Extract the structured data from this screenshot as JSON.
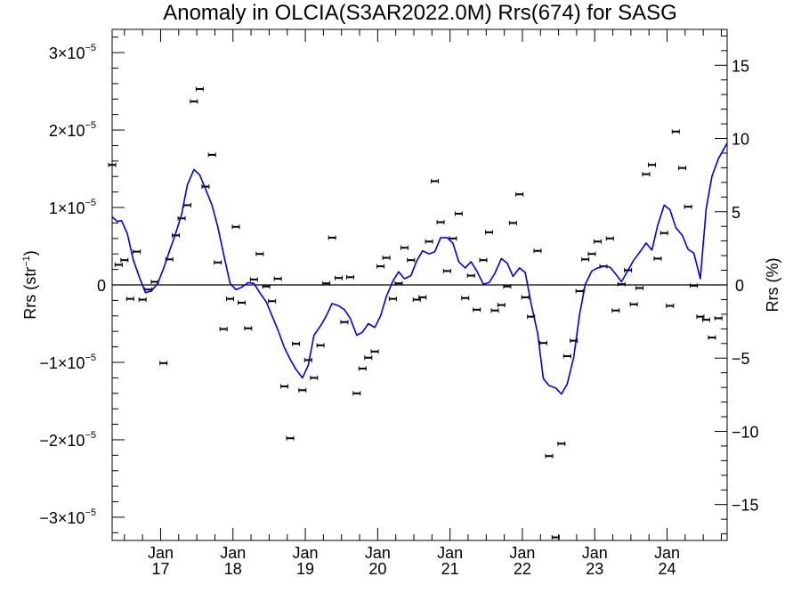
{
  "chart_data": {
    "type": "scatter",
    "title": "Anomaly in OLCIA(S3AR2022.0M) Rrs(674) for SASG",
    "ylabel": "Rrs (str",
    "ylabel_sup": "−1",
    "ylabel_close": ")",
    "y2label": "Rrs (%)",
    "x_range": [
      2016.33,
      2024.83
    ],
    "y_range": [
      -3.3e-05,
      3.3e-05
    ],
    "y2_range": [
      -17.45,
      17.45
    ],
    "x_ticks": [
      {
        "x": 2017.0,
        "top": "Jan",
        "bottom": "17"
      },
      {
        "x": 2018.0,
        "top": "Jan",
        "bottom": "18"
      },
      {
        "x": 2019.0,
        "top": "Jan",
        "bottom": "19"
      },
      {
        "x": 2020.0,
        "top": "Jan",
        "bottom": "20"
      },
      {
        "x": 2021.0,
        "top": "Jan",
        "bottom": "21"
      },
      {
        "x": 2022.0,
        "top": "Jan",
        "bottom": "22"
      },
      {
        "x": 2023.0,
        "top": "Jan",
        "bottom": "23"
      },
      {
        "x": 2024.0,
        "top": "Jan",
        "bottom": "24"
      }
    ],
    "y_ticks": [
      {
        "v": 3e-05,
        "mant": "3×10",
        "exp": "−5"
      },
      {
        "v": 2e-05,
        "mant": "2×10",
        "exp": "−5"
      },
      {
        "v": 1e-05,
        "mant": "1×10",
        "exp": "−5"
      },
      {
        "v": 0,
        "mant": "0",
        "exp": ""
      },
      {
        "v": -1e-05,
        "mant": "−1×10",
        "exp": "−5"
      },
      {
        "v": -2e-05,
        "mant": "−2×10",
        "exp": "−5"
      },
      {
        "v": -3e-05,
        "mant": "−3×10",
        "exp": "−5"
      }
    ],
    "y2_ticks": [
      {
        "v": 15,
        "label": "15"
      },
      {
        "v": 10,
        "label": "10"
      },
      {
        "v": 5,
        "label": "5"
      },
      {
        "v": 0,
        "label": "0"
      },
      {
        "v": -5,
        "label": "−5"
      },
      {
        "v": -10,
        "label": "−10"
      },
      {
        "v": -15,
        "label": "−15"
      }
    ],
    "zero_line": true,
    "points": [
      {
        "x": 2016.33,
        "y": 1.55e-05
      },
      {
        "x": 2016.42,
        "y": 2.6e-06
      },
      {
        "x": 2016.5,
        "y": 3.2e-06
      },
      {
        "x": 2016.58,
        "y": -1.8e-06
      },
      {
        "x": 2016.67,
        "y": 4.3e-06
      },
      {
        "x": 2016.75,
        "y": -1.9e-06
      },
      {
        "x": 2016.83,
        "y": -6e-07
      },
      {
        "x": 2016.92,
        "y": 4e-07
      },
      {
        "x": 2017.04,
        "y": -1.01e-05
      },
      {
        "x": 2017.12,
        "y": 3.3e-06
      },
      {
        "x": 2017.21,
        "y": 6.4e-06
      },
      {
        "x": 2017.29,
        "y": 8.6e-06
      },
      {
        "x": 2017.37,
        "y": 1.03e-05
      },
      {
        "x": 2017.46,
        "y": 2.37e-05
      },
      {
        "x": 2017.54,
        "y": 2.53e-05
      },
      {
        "x": 2017.62,
        "y": 1.27e-05
      },
      {
        "x": 2017.71,
        "y": 1.68e-05
      },
      {
        "x": 2017.79,
        "y": 2.9e-06
      },
      {
        "x": 2017.87,
        "y": -5.7e-06
      },
      {
        "x": 2017.96,
        "y": -1.8e-06
      },
      {
        "x": 2018.04,
        "y": 7.5e-06
      },
      {
        "x": 2018.12,
        "y": -2.3e-06
      },
      {
        "x": 2018.21,
        "y": -5.6e-06
      },
      {
        "x": 2018.29,
        "y": 7e-07
      },
      {
        "x": 2018.37,
        "y": 4e-06
      },
      {
        "x": 2018.46,
        "y": -2e-07
      },
      {
        "x": 2018.54,
        "y": -2.1e-06
      },
      {
        "x": 2018.62,
        "y": 8e-07
      },
      {
        "x": 2018.71,
        "y": -1.31e-05
      },
      {
        "x": 2018.79,
        "y": -1.98e-05
      },
      {
        "x": 2018.87,
        "y": -7.6e-06
      },
      {
        "x": 2018.96,
        "y": -1.36e-05
      },
      {
        "x": 2019.04,
        "y": -9.7e-06
      },
      {
        "x": 2019.12,
        "y": -1.2e-05
      },
      {
        "x": 2019.21,
        "y": -7.8e-06
      },
      {
        "x": 2019.29,
        "y": 2e-07
      },
      {
        "x": 2019.37,
        "y": 6.1e-06
      },
      {
        "x": 2019.46,
        "y": 9e-07
      },
      {
        "x": 2019.54,
        "y": -4.8e-06
      },
      {
        "x": 2019.62,
        "y": 1e-06
      },
      {
        "x": 2019.71,
        "y": -1.4e-05
      },
      {
        "x": 2019.79,
        "y": -1.08e-05
      },
      {
        "x": 2019.87,
        "y": -9.4e-06
      },
      {
        "x": 2019.96,
        "y": -8.6e-06
      },
      {
        "x": 2020.04,
        "y": 2.4e-06
      },
      {
        "x": 2020.12,
        "y": 3.5e-06
      },
      {
        "x": 2020.21,
        "y": -1.8e-06
      },
      {
        "x": 2020.29,
        "y": 2e-07
      },
      {
        "x": 2020.37,
        "y": 4.8e-06
      },
      {
        "x": 2020.46,
        "y": 3.2e-06
      },
      {
        "x": 2020.54,
        "y": -1.9e-06
      },
      {
        "x": 2020.62,
        "y": -1.6e-06
      },
      {
        "x": 2020.71,
        "y": 5.6e-06
      },
      {
        "x": 2020.79,
        "y": 1.34e-05
      },
      {
        "x": 2020.87,
        "y": 8.1e-06
      },
      {
        "x": 2020.96,
        "y": 1.8e-06
      },
      {
        "x": 2021.04,
        "y": 6e-06
      },
      {
        "x": 2021.12,
        "y": 9.2e-06
      },
      {
        "x": 2021.21,
        "y": -1.7e-06
      },
      {
        "x": 2021.29,
        "y": 1.2e-06
      },
      {
        "x": 2021.37,
        "y": -3.2e-06
      },
      {
        "x": 2021.46,
        "y": 3.2e-06
      },
      {
        "x": 2021.54,
        "y": 6.8e-06
      },
      {
        "x": 2021.62,
        "y": -3.3e-06
      },
      {
        "x": 2021.71,
        "y": -2.6e-06
      },
      {
        "x": 2021.79,
        "y": -2e-07
      },
      {
        "x": 2021.87,
        "y": 8e-06
      },
      {
        "x": 2021.96,
        "y": 1.17e-05
      },
      {
        "x": 2022.04,
        "y": -1.6e-06
      },
      {
        "x": 2022.12,
        "y": -4.1e-06
      },
      {
        "x": 2022.21,
        "y": 4.4e-06
      },
      {
        "x": 2022.29,
        "y": -7.5e-06
      },
      {
        "x": 2022.37,
        "y": -2.21e-05
      },
      {
        "x": 2022.46,
        "y": -3.26e-05
      },
      {
        "x": 2022.54,
        "y": -2.05e-05
      },
      {
        "x": 2022.62,
        "y": -9.2e-06
      },
      {
        "x": 2022.71,
        "y": -7.2e-06
      },
      {
        "x": 2022.79,
        "y": -8e-07
      },
      {
        "x": 2022.87,
        "y": 3.3e-06
      },
      {
        "x": 2022.96,
        "y": 4e-06
      },
      {
        "x": 2023.04,
        "y": 5.6e-06
      },
      {
        "x": 2023.12,
        "y": 2.4e-06
      },
      {
        "x": 2023.21,
        "y": 6e-06
      },
      {
        "x": 2023.29,
        "y": -3.3e-06
      },
      {
        "x": 2023.37,
        "y": 1e-07
      },
      {
        "x": 2023.46,
        "y": 1.9e-06
      },
      {
        "x": 2023.54,
        "y": -2.5e-06
      },
      {
        "x": 2023.62,
        "y": -4e-07
      },
      {
        "x": 2023.71,
        "y": 1.43e-05
      },
      {
        "x": 2023.79,
        "y": 1.55e-05
      },
      {
        "x": 2023.87,
        "y": 3.4e-06
      },
      {
        "x": 2023.96,
        "y": 6.7e-06
      },
      {
        "x": 2024.04,
        "y": -2.7e-06
      },
      {
        "x": 2024.12,
        "y": 1.98e-05
      },
      {
        "x": 2024.21,
        "y": 1.51e-05
      },
      {
        "x": 2024.29,
        "y": 1.01e-05
      },
      {
        "x": 2024.37,
        "y": -1e-07
      },
      {
        "x": 2024.46,
        "y": -4.1e-06
      },
      {
        "x": 2024.54,
        "y": -4.5e-06
      },
      {
        "x": 2024.62,
        "y": -6.8e-06
      },
      {
        "x": 2024.71,
        "y": -4.3e-06
      }
    ],
    "line": {
      "color": "#0000dd",
      "points": [
        [
          2016.33,
          8.8e-06
        ],
        [
          2016.4,
          8.2e-06
        ],
        [
          2016.46,
          8.3e-06
        ],
        [
          2016.54,
          6.6e-06
        ],
        [
          2016.62,
          3.3e-06
        ],
        [
          2016.71,
          9e-07
        ],
        [
          2016.79,
          -1e-06
        ],
        [
          2016.87,
          -8e-07
        ],
        [
          2016.96,
          2e-07
        ],
        [
          2017.04,
          2.1e-06
        ],
        [
          2017.12,
          4.3e-06
        ],
        [
          2017.21,
          6.7e-06
        ],
        [
          2017.29,
          9.1e-06
        ],
        [
          2017.37,
          1.29e-05
        ],
        [
          2017.46,
          1.49e-05
        ],
        [
          2017.54,
          1.42e-05
        ],
        [
          2017.62,
          1.24e-05
        ],
        [
          2017.71,
          1.03e-05
        ],
        [
          2017.79,
          7.5e-06
        ],
        [
          2017.87,
          4e-06
        ],
        [
          2017.96,
          2e-07
        ],
        [
          2018.04,
          -6e-07
        ],
        [
          2018.12,
          -3e-07
        ],
        [
          2018.21,
          3e-07
        ],
        [
          2018.29,
          2e-07
        ],
        [
          2018.37,
          -1e-06
        ],
        [
          2018.46,
          -2.2e-06
        ],
        [
          2018.54,
          -4e-06
        ],
        [
          2018.62,
          -5.8e-06
        ],
        [
          2018.71,
          -8.1e-06
        ],
        [
          2018.79,
          -9.6e-06
        ],
        [
          2018.87,
          -1.09e-05
        ],
        [
          2018.96,
          -1.2e-05
        ],
        [
          2019.04,
          -1.04e-05
        ],
        [
          2019.12,
          -6.5e-06
        ],
        [
          2019.21,
          -5.3e-06
        ],
        [
          2019.29,
          -4e-06
        ],
        [
          2019.37,
          -2.4e-06
        ],
        [
          2019.46,
          -2.7e-06
        ],
        [
          2019.54,
          -3.2e-06
        ],
        [
          2019.62,
          -4.3e-06
        ],
        [
          2019.71,
          -6.5e-06
        ],
        [
          2019.79,
          -6.1e-06
        ],
        [
          2019.87,
          -5e-06
        ],
        [
          2019.96,
          -5.5e-06
        ],
        [
          2020.04,
          -4e-06
        ],
        [
          2020.12,
          -1.5e-06
        ],
        [
          2020.21,
          5e-07
        ],
        [
          2020.29,
          1.7e-06
        ],
        [
          2020.37,
          8e-07
        ],
        [
          2020.46,
          1.2e-06
        ],
        [
          2020.54,
          3.1e-06
        ],
        [
          2020.62,
          4.4e-06
        ],
        [
          2020.71,
          4e-06
        ],
        [
          2020.79,
          4.3e-06
        ],
        [
          2020.87,
          6.1e-06
        ],
        [
          2020.96,
          6.1e-06
        ],
        [
          2021.04,
          5.4e-06
        ],
        [
          2021.12,
          3e-06
        ],
        [
          2021.21,
          2.2e-06
        ],
        [
          2021.29,
          3e-06
        ],
        [
          2021.37,
          1.8e-06
        ],
        [
          2021.46,
          1e-07
        ],
        [
          2021.54,
          3e-07
        ],
        [
          2021.62,
          1.5e-06
        ],
        [
          2021.71,
          3.4e-06
        ],
        [
          2021.79,
          2.8e-06
        ],
        [
          2021.87,
          1.1e-06
        ],
        [
          2021.96,
          2.2e-06
        ],
        [
          2022.04,
          1.6e-06
        ],
        [
          2022.12,
          -2.4e-06
        ],
        [
          2022.21,
          -6.2e-06
        ],
        [
          2022.29,
          -1.21e-05
        ],
        [
          2022.37,
          -1.3e-05
        ],
        [
          2022.46,
          -1.33e-05
        ],
        [
          2022.54,
          -1.41e-05
        ],
        [
          2022.62,
          -1.28e-05
        ],
        [
          2022.71,
          -9.3e-06
        ],
        [
          2022.79,
          -3.8e-06
        ],
        [
          2022.87,
          1e-07
        ],
        [
          2022.96,
          1.8e-06
        ],
        [
          2023.04,
          2.2e-06
        ],
        [
          2023.12,
          2.4e-06
        ],
        [
          2023.21,
          2.3e-06
        ],
        [
          2023.29,
          1.4e-06
        ],
        [
          2023.37,
          4e-07
        ],
        [
          2023.46,
          1.9e-06
        ],
        [
          2023.54,
          3.2e-06
        ],
        [
          2023.62,
          4.2e-06
        ],
        [
          2023.71,
          5.4e-06
        ],
        [
          2023.79,
          4.5e-06
        ],
        [
          2023.87,
          7.7e-06
        ],
        [
          2023.96,
          1.03e-05
        ],
        [
          2024.04,
          9.7e-06
        ],
        [
          2024.12,
          7.4e-06
        ],
        [
          2024.21,
          6.4e-06
        ],
        [
          2024.29,
          4.6e-06
        ],
        [
          2024.37,
          4.1e-06
        ],
        [
          2024.46,
          8e-07
        ],
        [
          2024.54,
          9.8e-06
        ],
        [
          2024.62,
          1.4e-05
        ],
        [
          2024.71,
          1.63e-05
        ],
        [
          2024.83,
          1.83e-05
        ]
      ]
    }
  }
}
